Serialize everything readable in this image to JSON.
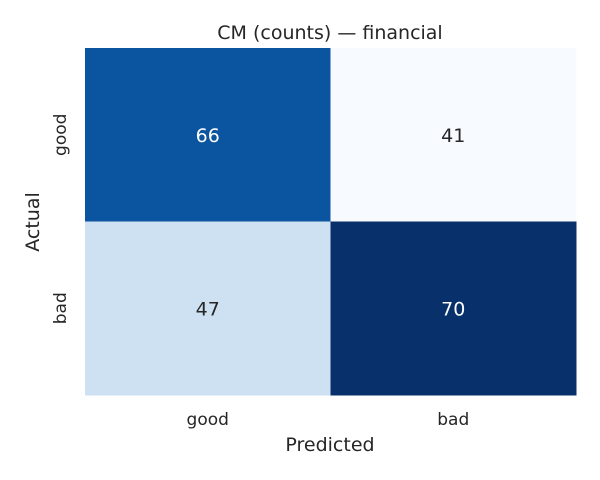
{
  "chart_data": {
    "type": "heatmap",
    "title": "CM (counts) — financial",
    "xlabel": "Predicted",
    "ylabel": "Actual",
    "x_categories": [
      "good",
      "bad"
    ],
    "y_categories": [
      "good",
      "bad"
    ],
    "values": [
      [
        66,
        41
      ],
      [
        47,
        70
      ]
    ],
    "colormap": "Blues",
    "vmin": 41,
    "vmax": 70,
    "colorbar": false,
    "annotations": true
  },
  "colors": {
    "low": "#f7fbff",
    "high": "#08306b",
    "text_dark": "#262626",
    "text_light": "#ffffff"
  }
}
